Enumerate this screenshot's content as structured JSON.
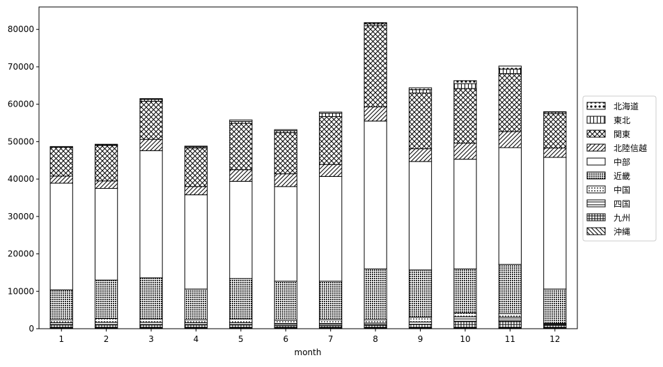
{
  "chart_data": {
    "type": "bar",
    "stacked": true,
    "xlabel": "month",
    "ylabel": "",
    "ylim": [
      0,
      86000
    ],
    "yticks": [
      0,
      10000,
      20000,
      30000,
      40000,
      50000,
      60000,
      70000,
      80000
    ],
    "ytick_labels": [
      "0",
      "10000",
      "20000",
      "30000",
      "40000",
      "50000",
      "60000",
      "70000",
      "80000"
    ],
    "categories": [
      "1",
      "2",
      "3",
      "4",
      "5",
      "6",
      "7",
      "8",
      "9",
      "10",
      "11",
      "12"
    ],
    "legend_position": "right",
    "series": [
      {
        "name": "沖縄",
        "hatch": "backslash",
        "values": [
          200,
          200,
          200,
          200,
          200,
          200,
          200,
          200,
          200,
          200,
          200,
          200
        ]
      },
      {
        "name": "九州",
        "hatch": "plus",
        "values": [
          800,
          800,
          800,
          800,
          800,
          600,
          600,
          700,
          1000,
          1800,
          1900,
          700
        ]
      },
      {
        "name": "四国",
        "hatch": "hline",
        "values": [
          600,
          700,
          700,
          600,
          600,
          600,
          600,
          600,
          600,
          1200,
          1000,
          300
        ]
      },
      {
        "name": "中国",
        "hatch": "dots-small",
        "values": [
          800,
          1000,
          900,
          800,
          1000,
          900,
          1000,
          900,
          1300,
          1000,
          900,
          200
        ]
      },
      {
        "name": "近畿",
        "hatch": "dense",
        "values": [
          8000,
          10300,
          11000,
          8200,
          10800,
          10400,
          10300,
          13600,
          12600,
          11800,
          13200,
          9200
        ]
      },
      {
        "name": "中部",
        "hatch": "none",
        "values": [
          28500,
          24500,
          34000,
          25200,
          26000,
          25300,
          28000,
          39500,
          29000,
          29300,
          31200,
          35200
        ]
      },
      {
        "name": "北陸信越",
        "hatch": "slash",
        "values": [
          1900,
          2000,
          3000,
          2200,
          3100,
          3400,
          3200,
          3800,
          3400,
          4300,
          4300,
          2500
        ]
      },
      {
        "name": "関東",
        "hatch": "cross",
        "values": [
          7700,
          9500,
          10200,
          10300,
          12400,
          11000,
          12800,
          21700,
          14900,
          14600,
          15500,
          9200
        ]
      },
      {
        "name": "東北",
        "hatch": "vline",
        "values": [
          0,
          100,
          500,
          300,
          500,
          500,
          900,
          500,
          900,
          1300,
          1200,
          400
        ]
      },
      {
        "name": "北海道",
        "hatch": "dots-large",
        "values": [
          200,
          200,
          200,
          200,
          400,
          300,
          300,
          300,
          500,
          800,
          800,
          100
        ]
      }
    ]
  }
}
